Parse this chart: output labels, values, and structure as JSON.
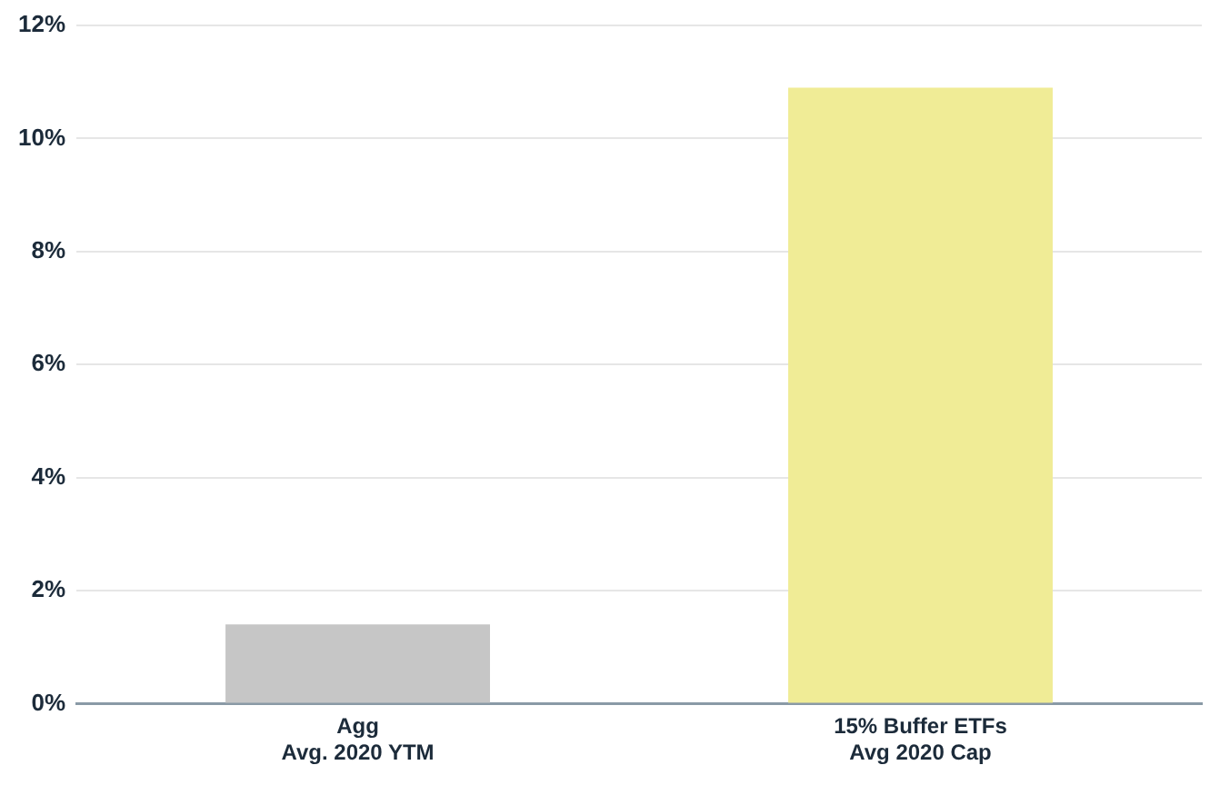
{
  "chart_data": {
    "type": "bar",
    "categories": [
      "Agg\nAvg. 2020 YTM",
      "15% Buffer ETFs\nAvg 2020 Cap"
    ],
    "values": [
      1.4,
      10.9
    ],
    "colors": [
      "#c6c6c6",
      "#f0ec96"
    ],
    "ylim": [
      0,
      12
    ],
    "yticks": [
      {
        "value": 0,
        "label": "0%"
      },
      {
        "value": 2,
        "label": "2%"
      },
      {
        "value": 4,
        "label": "4%"
      },
      {
        "value": 6,
        "label": "6%"
      },
      {
        "value": 8,
        "label": "8%"
      },
      {
        "value": 10,
        "label": "10%"
      },
      {
        "value": 12,
        "label": "12%"
      }
    ],
    "grid": "y",
    "legend": false
  }
}
